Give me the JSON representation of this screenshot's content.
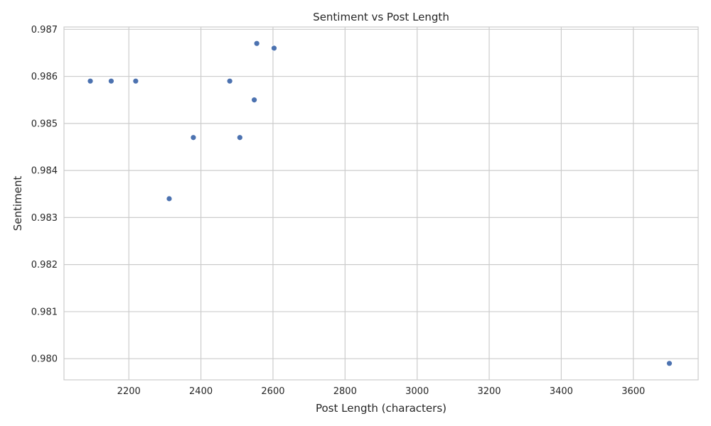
{
  "chart_data": {
    "type": "scatter",
    "title": "Sentiment vs Post Length",
    "xlabel": "Post Length (characters)",
    "ylabel": "Sentiment",
    "xlim": [
      2020,
      3780
    ],
    "ylim": [
      0.97955,
      0.98705
    ],
    "xticks": [
      2200,
      2400,
      2600,
      2800,
      3000,
      3200,
      3400,
      3600
    ],
    "yticks": [
      0.98,
      0.981,
      0.982,
      0.983,
      0.984,
      0.985,
      0.986,
      0.987
    ],
    "ytick_labels": [
      "0.980",
      "0.981",
      "0.982",
      "0.983",
      "0.984",
      "0.985",
      "0.986",
      "0.987"
    ],
    "grid": true,
    "marker_color": "#4c72b0",
    "points": [
      {
        "x": 2093,
        "y": 0.9859
      },
      {
        "x": 2151,
        "y": 0.9859
      },
      {
        "x": 2219,
        "y": 0.9859
      },
      {
        "x": 2312,
        "y": 0.9834
      },
      {
        "x": 2379,
        "y": 0.9847
      },
      {
        "x": 2480,
        "y": 0.9859
      },
      {
        "x": 2508,
        "y": 0.9847
      },
      {
        "x": 2548,
        "y": 0.9855
      },
      {
        "x": 2555,
        "y": 0.9867
      },
      {
        "x": 2603,
        "y": 0.9866
      },
      {
        "x": 3700,
        "y": 0.9799
      }
    ]
  }
}
